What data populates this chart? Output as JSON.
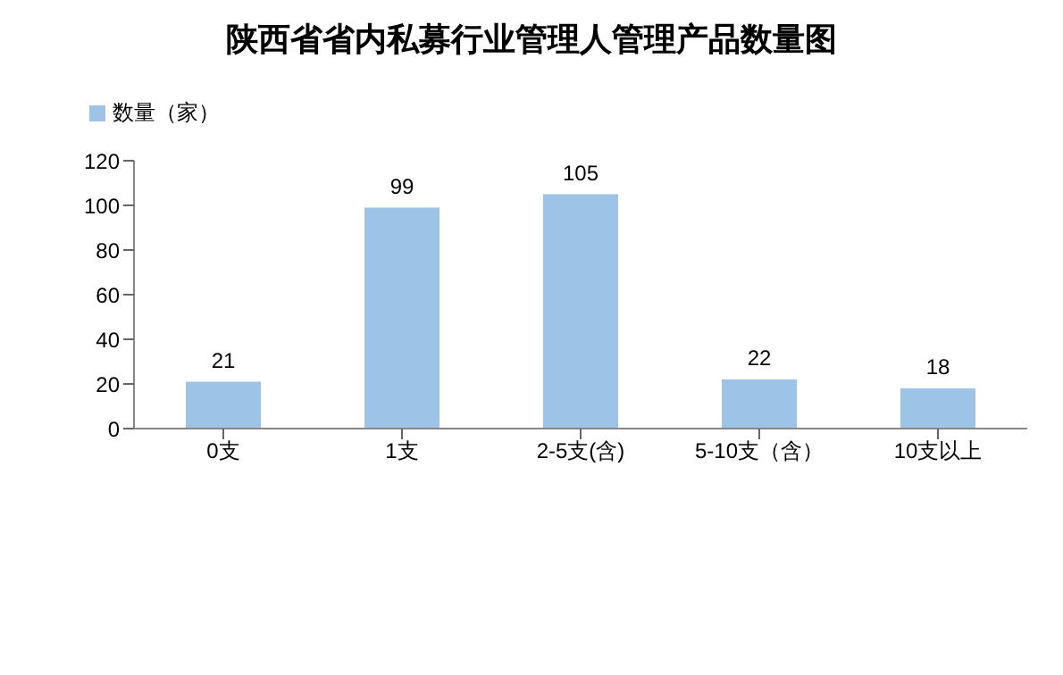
{
  "chart_data": {
    "type": "bar",
    "title": "陕西省省内私募行业管理人管理产品数量图",
    "categories": [
      "0支",
      "1支",
      "2-5支(含)",
      "5-10支（含）",
      "10支以上"
    ],
    "series": [
      {
        "name": "数量（家）",
        "color": "#9dc3e6",
        "values": [
          21,
          99,
          105,
          22,
          18
        ]
      }
    ],
    "ylim": [
      0,
      120
    ],
    "yticks": [
      0,
      20,
      40,
      60,
      80,
      100,
      120
    ],
    "grid": false,
    "legend": "top left",
    "data_labels": true
  }
}
